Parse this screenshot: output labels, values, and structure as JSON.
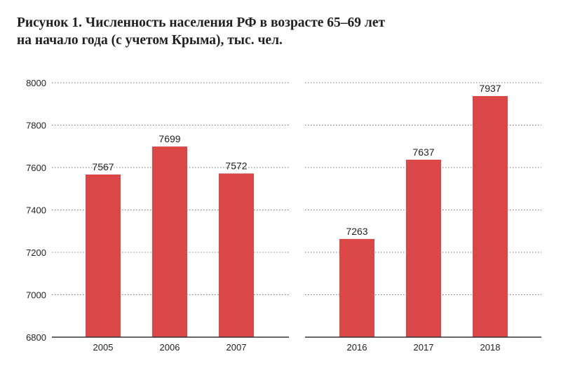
{
  "title": {
    "line1": "Рисунок 1. Численность населения РФ в возрасте 65–69 лет",
    "line2": "на начало года (с учетом Крыма), тыс. чел."
  },
  "colors": {
    "bar": "#db4646",
    "grid": "#7a7a7a",
    "axis": "#333333",
    "text": "#231f20"
  },
  "chart_data": {
    "type": "bar",
    "ylim": [
      6800,
      8000
    ],
    "yticks": [
      6800,
      7000,
      7200,
      7400,
      7600,
      7800,
      8000
    ],
    "grid": true,
    "panels": [
      {
        "categories": [
          "2005",
          "2006",
          "2007"
        ],
        "values": [
          7567,
          7699,
          7572
        ]
      },
      {
        "categories": [
          "2016",
          "2017",
          "2018"
        ],
        "values": [
          7263,
          7637,
          7937
        ]
      }
    ]
  }
}
